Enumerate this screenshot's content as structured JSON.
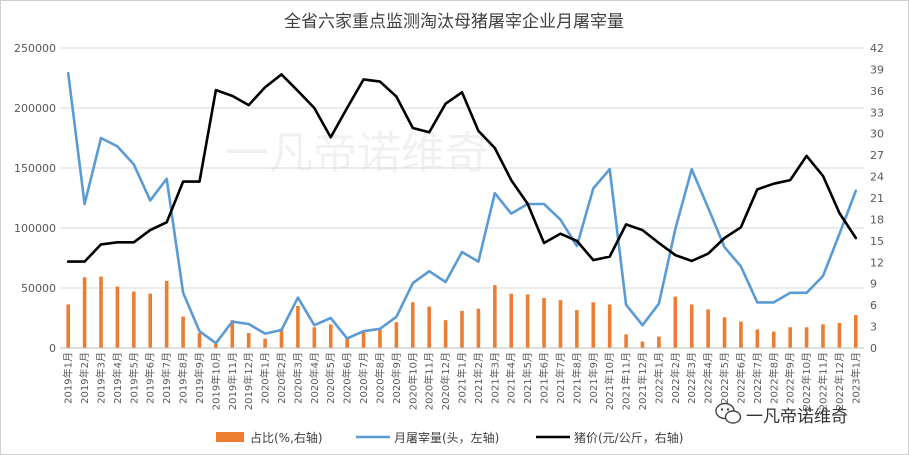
{
  "chart_data": {
    "type": "bar+line",
    "title": "全省六家重点监测淘汰母猪屠宰企业月屠宰量",
    "categories": [
      "2019年1月",
      "2019年2月",
      "2019年3月",
      "2019年4月",
      "2019年5月",
      "2019年6月",
      "2019年7月",
      "2019年8月",
      "2019年9月",
      "2019年10月",
      "2019年11月",
      "2019年12月",
      "2020年1月",
      "2020年2月",
      "2020年3月",
      "2020年4月",
      "2020年5月",
      "2020年6月",
      "2020年7月",
      "2020年8月",
      "2020年9月",
      "2020年10月",
      "2020年11月",
      "2020年12月",
      "2021年1月",
      "2021年2月",
      "2021年3月",
      "2021年4月",
      "2021年5月",
      "2021年6月",
      "2021年7月",
      "2021年8月",
      "2021年9月",
      "2021年10月",
      "2021年11月",
      "2021年12月",
      "2022年1月",
      "2022年2月",
      "2022年3月",
      "2022年4月",
      "2022年5月",
      "2022年6月",
      "2022年7月",
      "2022年8月",
      "2022年9月",
      "2022年10月",
      "2022年11月",
      "2022年12月",
      "2023年1月"
    ],
    "left_axis": {
      "min": 0,
      "max": 250000,
      "ticks": [
        "0",
        "50000",
        "100000",
        "150000",
        "200000",
        "250000"
      ]
    },
    "right_axis": {
      "min": 0,
      "max": 42,
      "ticks": [
        "0",
        "3",
        "6",
        "9",
        "12",
        "15",
        "18",
        "21",
        "24",
        "27",
        "30",
        "33",
        "36",
        "39",
        "42"
      ]
    },
    "series": [
      {
        "name": "占比(%,右轴)",
        "kind": "bar",
        "axis": "right",
        "color": "#ED7D31",
        "values": [
          6.1,
          9.9,
          10.0,
          8.6,
          7.9,
          7.6,
          9.4,
          4.4,
          2.1,
          0.6,
          3.9,
          2.1,
          1.3,
          2.7,
          5.9,
          2.9,
          3.3,
          1.3,
          2.2,
          2.6,
          3.6,
          6.4,
          5.8,
          3.9,
          5.2,
          5.5,
          8.8,
          7.6,
          7.5,
          7.0,
          6.7,
          5.3,
          6.4,
          6.1,
          1.9,
          0.9,
          1.6,
          7.2,
          6.1,
          5.4,
          4.3,
          3.7,
          2.6,
          2.3,
          2.9,
          2.9,
          3.3,
          3.5,
          4.6
        ]
      },
      {
        "name": "月屠宰量(头，左轴)",
        "kind": "line",
        "axis": "left",
        "color": "#5B9BD5",
        "values": [
          229000,
          120000,
          175000,
          168000,
          153000,
          123000,
          141000,
          46000,
          14000,
          4000,
          22000,
          20000,
          12000,
          15000,
          42000,
          19000,
          25000,
          8000,
          14000,
          16000,
          26000,
          54000,
          64000,
          55000,
          80000,
          72000,
          129000,
          112000,
          120000,
          120000,
          107000,
          85000,
          133000,
          149000,
          36000,
          19000,
          37000,
          99000,
          149000,
          117000,
          84000,
          68000,
          38000,
          38000,
          46000,
          46000,
          60000,
          95000,
          131000
        ]
      },
      {
        "name": "猪价(元/公斤，右轴)",
        "kind": "line",
        "axis": "right",
        "color": "#000000",
        "values": [
          12.1,
          12.1,
          14.5,
          14.8,
          14.8,
          16.5,
          17.6,
          23.3,
          23.3,
          36.1,
          35.3,
          34.0,
          36.5,
          38.3,
          36.0,
          33.6,
          29.5,
          33.6,
          37.6,
          37.3,
          35.2,
          30.8,
          30.2,
          34.2,
          35.8,
          30.4,
          28.0,
          23.5,
          20.2,
          14.7,
          16.0,
          15.0,
          12.3,
          12.8,
          17.3,
          16.5,
          14.7,
          13.0,
          12.2,
          13.2,
          15.4,
          16.9,
          22.2,
          23.0,
          23.5,
          26.9,
          24.1,
          18.9,
          15.4
        ]
      }
    ],
    "legend_position": "bottom",
    "watermark": "一凡帝诺维奇"
  },
  "branding": {
    "logo_icon": "wechat-icon",
    "text": "一凡帝诺维奇"
  }
}
